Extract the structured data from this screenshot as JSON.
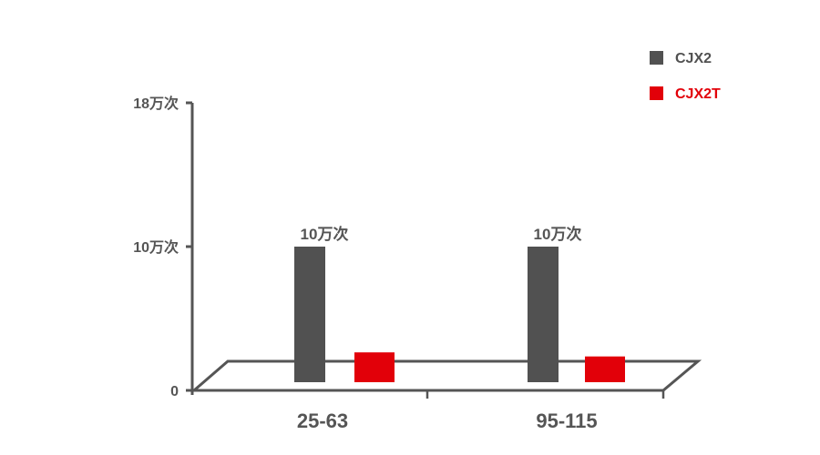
{
  "chart_data": {
    "type": "bar",
    "title": "",
    "xlabel": "",
    "ylabel": "",
    "categories": [
      "25-63",
      "95-115"
    ],
    "y_ticks": [
      {
        "value": 0,
        "label": "0"
      },
      {
        "value": 10,
        "label": "10万次"
      },
      {
        "value": 18,
        "label": "18万次"
      }
    ],
    "ylim": [
      0,
      18
    ],
    "unit": "万次",
    "grid": false,
    "legend_position": "top-right",
    "series": [
      {
        "name": "CJX2",
        "color": "#515151",
        "values": [
          10,
          10
        ],
        "data_labels": [
          "10万次",
          "10万次"
        ]
      },
      {
        "name": "CJX2T",
        "color": "#e20009",
        "values": [
          2.2,
          1.9
        ],
        "data_labels": [
          "",
          ""
        ]
      }
    ],
    "axis_color": "#555555"
  }
}
